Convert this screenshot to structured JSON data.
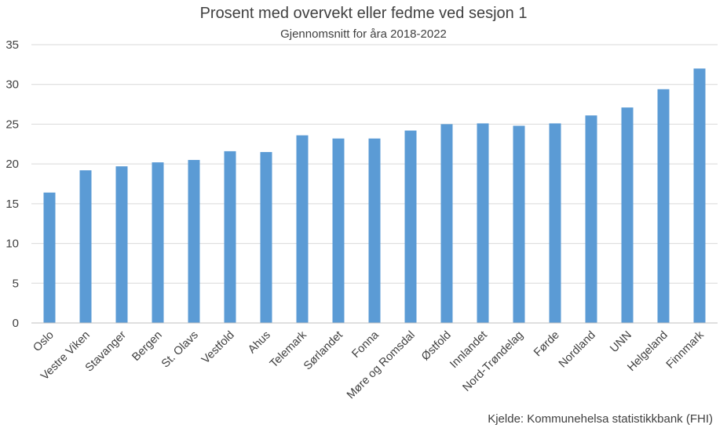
{
  "chart_data": {
    "type": "bar",
    "title": "Prosent med overvekt eller fedme ved sesjon 1",
    "subtitle": "Gjennomsnitt for åra 2018-2022",
    "source": "Kjelde: Kommunehelsa statistikkbank (FHI)",
    "categories": [
      "Oslo",
      "Vestre Viken",
      "Stavanger",
      "Bergen",
      "St. Olavs",
      "Vestfold",
      "Ahus",
      "Telemark",
      "Sørlandet",
      "Fonna",
      "Møre og Romsdal",
      "Østfold",
      "Innlandet",
      "Nord-Trøndelag",
      "Førde",
      "Nordland",
      "UNN",
      "Helgeland",
      "Finnmark"
    ],
    "values": [
      16.4,
      19.2,
      19.7,
      20.2,
      20.5,
      21.6,
      21.5,
      23.6,
      23.2,
      23.2,
      24.2,
      25.0,
      25.1,
      24.8,
      25.1,
      26.1,
      27.1,
      29.4,
      32.0
    ],
    "yticks": [
      "0",
      "5",
      "10",
      "15",
      "20",
      "25",
      "30",
      "35"
    ],
    "ylim": [
      0,
      35
    ],
    "grid": true,
    "legend": "none",
    "bar_color": "#5b9bd5"
  }
}
